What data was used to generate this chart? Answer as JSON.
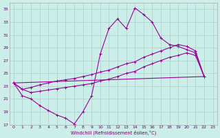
{
  "xlabel": "Windchill (Refroidissement éolien,°C)",
  "bg_color": "#cceee8",
  "grid_color": "#aacccc",
  "line_color": "#990099",
  "xlim": [
    -0.5,
    23.5
  ],
  "ylim": [
    17,
    36
  ],
  "xticks": [
    0,
    1,
    2,
    3,
    4,
    5,
    6,
    7,
    8,
    9,
    10,
    11,
    12,
    13,
    14,
    15,
    16,
    17,
    18,
    19,
    20,
    21,
    22,
    23
  ],
  "yticks": [
    17,
    19,
    21,
    23,
    25,
    27,
    29,
    31,
    33,
    35
  ],
  "series": [
    {
      "x": [
        0,
        1,
        2,
        3,
        4,
        5,
        6,
        7,
        8,
        9,
        10,
        11,
        12,
        13,
        14,
        15,
        16,
        17,
        18,
        19,
        20,
        21,
        22
      ],
      "y": [
        23.5,
        21.5,
        21.0,
        20.0,
        19.2,
        18.5,
        18.0,
        17.1,
        19.0,
        21.5,
        28.0,
        32.0,
        33.5,
        32.0,
        35.2,
        34.2,
        33.0,
        30.5,
        29.5,
        29.2,
        28.7,
        28.2,
        24.5
      ],
      "marker": true
    },
    {
      "x": [
        0,
        22
      ],
      "y": [
        23.5,
        24.5
      ],
      "marker": false
    },
    {
      "x": [
        0,
        1,
        2,
        3,
        4,
        5,
        6,
        7,
        8,
        9,
        10,
        11,
        12,
        13,
        14,
        15,
        16,
        17,
        18,
        19,
        20,
        21,
        22
      ],
      "y": [
        23.5,
        22.5,
        22.8,
        23.2,
        23.5,
        23.8,
        24.0,
        24.2,
        24.5,
        24.8,
        25.2,
        25.5,
        26.0,
        26.5,
        26.8,
        27.5,
        28.0,
        28.5,
        29.0,
        29.5,
        29.2,
        28.5,
        24.5
      ],
      "marker": true
    },
    {
      "x": [
        0,
        1,
        2,
        3,
        4,
        5,
        6,
        7,
        8,
        9,
        10,
        11,
        12,
        13,
        14,
        15,
        16,
        17,
        18,
        19,
        20,
        21,
        22
      ],
      "y": [
        23.5,
        22.5,
        22.0,
        22.2,
        22.4,
        22.6,
        22.8,
        23.0,
        23.2,
        23.4,
        23.8,
        24.1,
        24.5,
        25.0,
        25.3,
        26.0,
        26.5,
        27.0,
        27.5,
        27.8,
        28.2,
        27.8,
        24.5
      ],
      "marker": true
    }
  ]
}
